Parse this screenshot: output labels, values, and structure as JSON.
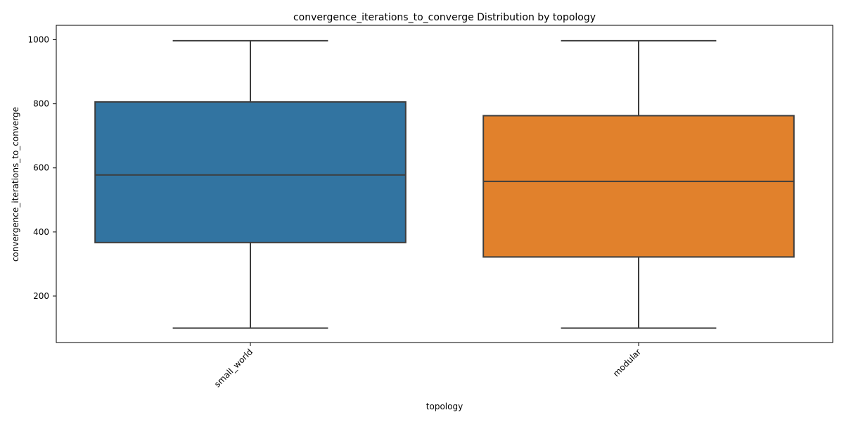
{
  "chart_data": {
    "type": "box",
    "title": "convergence_iterations_to_converge Distribution by topology",
    "xlabel": "topology",
    "ylabel": "convergence_iterations_to_converge",
    "ylim": [
      55,
      1045
    ],
    "yticks": [
      200,
      400,
      600,
      800,
      1000
    ],
    "grid": false,
    "legend": "none",
    "categories": [
      "small_world",
      "modular"
    ],
    "boxes": [
      {
        "category": "small_world",
        "whisker_low": 100,
        "q1": 367,
        "median": 578,
        "q3": 806,
        "whisker_high": 997,
        "color": "#3274a1"
      },
      {
        "category": "modular",
        "whisker_low": 100,
        "q1": 322,
        "median": 558,
        "q3": 763,
        "whisker_high": 997,
        "color": "#e1812c"
      }
    ],
    "line_color": "#3d3d3d"
  }
}
